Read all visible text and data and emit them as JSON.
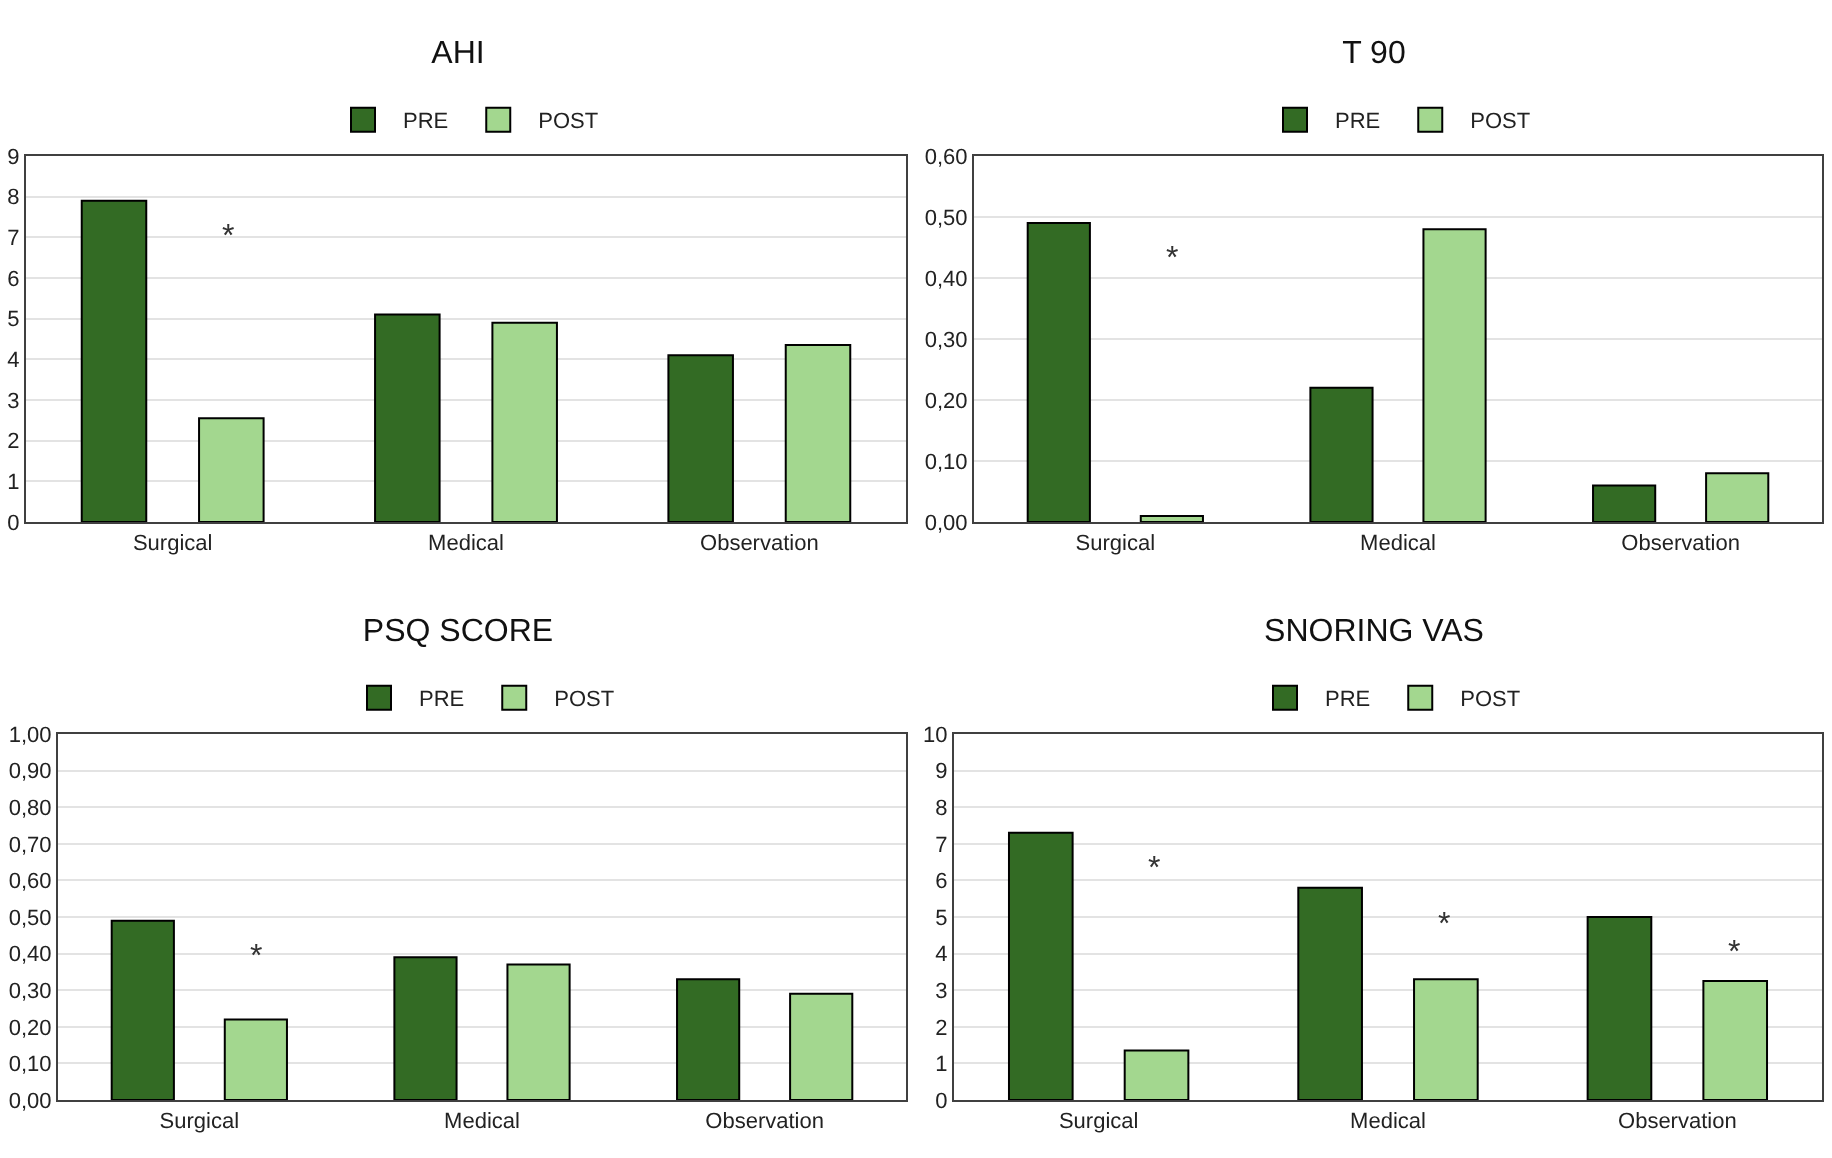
{
  "chart_data": [
    {
      "type": "bar",
      "title": "AHI",
      "categories": [
        "Surgical",
        "Medical",
        "Observation"
      ],
      "series": [
        {
          "name": "PRE",
          "color": "#336b24",
          "values": [
            7.9,
            5.1,
            4.1
          ]
        },
        {
          "name": "POST",
          "color": "#a3d78f",
          "values": [
            2.55,
            4.9,
            4.35
          ]
        }
      ],
      "ylim": [
        0,
        9
      ],
      "yticks": [
        0,
        1,
        2,
        3,
        4,
        5,
        6,
        7,
        8,
        9
      ],
      "grid": "y",
      "legend": "top",
      "annotations": [
        "*"
      ]
    },
    {
      "type": "bar",
      "title": "T 90",
      "categories": [
        "Surgical",
        "Medical",
        "Observation"
      ],
      "series": [
        {
          "name": "PRE",
          "color": "#336b24",
          "values": [
            0.49,
            0.22,
            0.06
          ]
        },
        {
          "name": "POST",
          "color": "#a3d78f",
          "values": [
            0.01,
            0.48,
            0.08
          ]
        }
      ],
      "ylim": [
        0,
        0.6
      ],
      "yticks": [
        {
          "value": 0,
          "label": "0,00"
        },
        {
          "value": 0.1,
          "label": "0,10"
        },
        {
          "value": 0.2,
          "label": "0,20"
        },
        {
          "value": 0.3,
          "label": "0,30"
        },
        {
          "value": 0.4,
          "label": "0,40"
        },
        {
          "value": 0.5,
          "label": "0,50"
        },
        {
          "value": 0.6,
          "label": "0,60"
        }
      ],
      "grid": "y",
      "legend": "top",
      "annotations": [
        "*"
      ]
    },
    {
      "type": "bar",
      "title": "PSQ SCORE",
      "categories": [
        "Surgical",
        "Medical",
        "Observation"
      ],
      "series": [
        {
          "name": "PRE",
          "color": "#336b24",
          "values": [
            0.49,
            0.39,
            0.33
          ]
        },
        {
          "name": "POST",
          "color": "#a3d78f",
          "values": [
            0.22,
            0.37,
            0.29
          ]
        }
      ],
      "ylim": [
        0,
        1
      ],
      "yticks": [
        {
          "value": 0,
          "label": "0,00"
        },
        {
          "value": 0.1,
          "label": "0,10"
        },
        {
          "value": 0.2,
          "label": "0,20"
        },
        {
          "value": 0.3,
          "label": "0,30"
        },
        {
          "value": 0.4,
          "label": "0,40"
        },
        {
          "value": 0.5,
          "label": "0,50"
        },
        {
          "value": 0.6,
          "label": "0,60"
        },
        {
          "value": 0.7,
          "label": "0,70"
        },
        {
          "value": 0.8,
          "label": "0,80"
        },
        {
          "value": 0.9,
          "label": "0,90"
        },
        {
          "value": 1,
          "label": "1,00"
        }
      ],
      "grid": "y",
      "legend": "top",
      "annotations": [
        "*"
      ]
    },
    {
      "type": "bar",
      "title": "SNORING VAS",
      "categories": [
        "Surgical",
        "Medical",
        "Observation"
      ],
      "series": [
        {
          "name": "PRE",
          "color": "#336b24",
          "values": [
            7.3,
            5.8,
            5.0
          ]
        },
        {
          "name": "POST",
          "color": "#a3d78f",
          "values": [
            1.35,
            3.3,
            3.25
          ]
        }
      ],
      "ylim": [
        0,
        10
      ],
      "yticks": [
        0,
        1,
        2,
        3,
        4,
        5,
        6,
        7,
        8,
        9,
        10
      ],
      "grid": "y",
      "legend": "top",
      "annotations": [
        "*",
        "*",
        "*"
      ]
    }
  ]
}
